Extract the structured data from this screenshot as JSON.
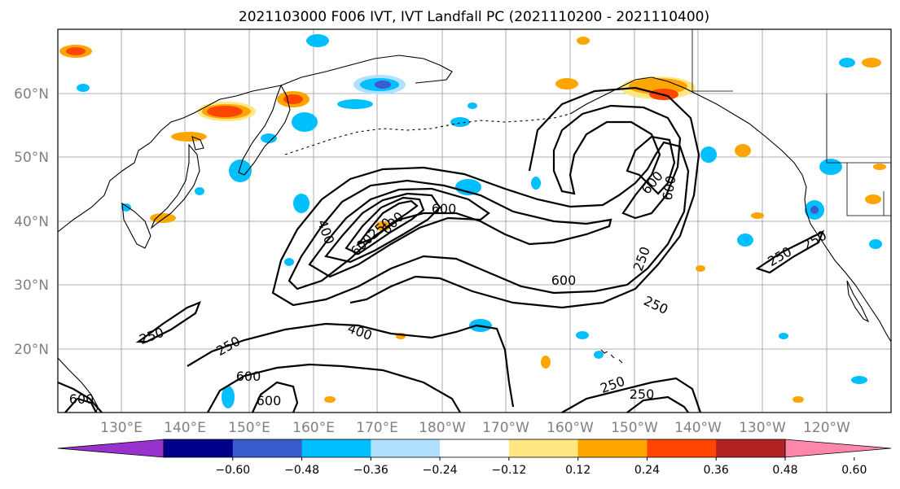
{
  "title": "2021103000 F006 IVT, IVT Landfall PC (2021110200 - 2021110400)",
  "axes": {
    "lon_labels": [
      "130°E",
      "140°E",
      "150°E",
      "160°E",
      "170°E",
      "180°W",
      "170°W",
      "160°W",
      "150°W",
      "140°W",
      "130°W",
      "120°W"
    ],
    "lat_labels": [
      "60°N",
      "50°N",
      "40°N",
      "30°N",
      "20°N"
    ]
  },
  "colorbar": {
    "ticks": [
      "−0.60",
      "−0.48",
      "−0.36",
      "−0.24",
      "−0.12",
      "0.12",
      "0.24",
      "0.36",
      "0.48",
      "0.60"
    ],
    "colors": [
      "#9932cc",
      "#00008b",
      "#3a5bcc",
      "#00bfff",
      "#b0e2ff",
      "#ffffff",
      "#ffe680",
      "#ffa500",
      "#ff4500",
      "#b22222",
      "#ff88aa"
    ]
  },
  "contour_labels": [
    "600",
    "600",
    "600",
    "600",
    "400",
    "400",
    "250",
    "250",
    "250",
    "250",
    "250",
    "250",
    "250",
    "600",
    "600",
    "600",
    "600",
    "600",
    "250",
    "250"
  ]
}
